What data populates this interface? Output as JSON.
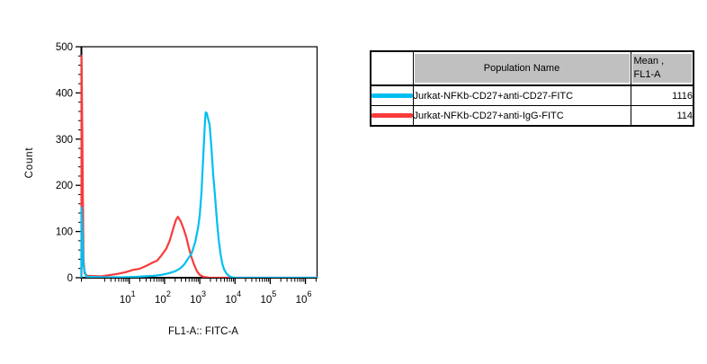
{
  "chart_data": {
    "type": "line",
    "subtype": "flow-cytometry-histogram-overlay",
    "title": "",
    "xlabel": "FL1-A:: FITC-A",
    "ylabel": "Count",
    "x_scale": "biexponential-log10",
    "x_tick_base": "10",
    "x_major_tick_exponents": [
      1,
      2,
      3,
      4,
      5,
      6
    ],
    "xlim_log10": [
      -0.36,
      6.33
    ],
    "ylim": [
      0,
      500
    ],
    "y_major_ticks": [
      0,
      100,
      200,
      300,
      400,
      500
    ],
    "y_minor_step": 20,
    "grid": false,
    "legend_position": "table-right",
    "series": [
      {
        "name": "Jurkat-NFKb-CD27+anti-CD27-FITC",
        "color": "#00BFF0",
        "mean_fl1a": 1116,
        "peak": {
          "log10x": 3.17,
          "count": 358
        },
        "points_log10x_count": [
          [
            -0.36,
            0
          ],
          [
            -0.355,
            152
          ],
          [
            -0.3,
            25
          ],
          [
            -0.27,
            15
          ],
          [
            -0.22,
            2
          ],
          [
            0.3,
            1
          ],
          [
            0.8,
            1
          ],
          [
            1.2,
            2
          ],
          [
            1.41,
            3
          ],
          [
            1.7,
            4
          ],
          [
            1.9,
            6
          ],
          [
            2.13,
            10
          ],
          [
            2.3,
            14
          ],
          [
            2.44,
            20
          ],
          [
            2.55,
            28
          ],
          [
            2.64,
            38
          ],
          [
            2.77,
            53
          ],
          [
            2.87,
            77
          ],
          [
            2.95,
            107
          ],
          [
            3.0,
            136
          ],
          [
            3.05,
            185
          ],
          [
            3.1,
            264
          ],
          [
            3.15,
            342
          ],
          [
            3.17,
            358
          ],
          [
            3.2,
            356
          ],
          [
            3.28,
            330
          ],
          [
            3.33,
            283
          ],
          [
            3.38,
            224
          ],
          [
            3.44,
            171
          ],
          [
            3.49,
            120
          ],
          [
            3.54,
            81
          ],
          [
            3.59,
            51
          ],
          [
            3.64,
            30
          ],
          [
            3.69,
            18
          ],
          [
            3.77,
            8
          ],
          [
            3.85,
            3
          ],
          [
            3.97,
            0
          ],
          [
            6.33,
            0
          ]
        ]
      },
      {
        "name": "Jurkat-NFKb-CD27+anti-IgG-FITC",
        "color": "#F93B3B",
        "mean_fl1a": 114,
        "peak": {
          "log10x": 2.38,
          "count": 132
        },
        "points_log10x_count": [
          [
            -0.36,
            0
          ],
          [
            -0.355,
            480
          ],
          [
            -0.3,
            40
          ],
          [
            -0.27,
            10
          ],
          [
            -0.2,
            4
          ],
          [
            0.2,
            3
          ],
          [
            0.64,
            8
          ],
          [
            0.9,
            12
          ],
          [
            1.1,
            17
          ],
          [
            1.28,
            19
          ],
          [
            1.49,
            26
          ],
          [
            1.67,
            33
          ],
          [
            1.79,
            37
          ],
          [
            1.92,
            49
          ],
          [
            2.05,
            63
          ],
          [
            2.15,
            81
          ],
          [
            2.26,
            110
          ],
          [
            2.33,
            126
          ],
          [
            2.38,
            132
          ],
          [
            2.46,
            122
          ],
          [
            2.54,
            106
          ],
          [
            2.62,
            87
          ],
          [
            2.69,
            65
          ],
          [
            2.77,
            43
          ],
          [
            2.85,
            26
          ],
          [
            2.92,
            14
          ],
          [
            3.0,
            6
          ],
          [
            3.1,
            2
          ],
          [
            3.26,
            0
          ],
          [
            6.33,
            0
          ]
        ]
      }
    ]
  },
  "table": {
    "headers": {
      "swatch": "",
      "population": "Population Name",
      "mean_line1": "Mean ,",
      "mean_line2": "FL1-A"
    },
    "rows": [
      {
        "name": "Jurkat-NFKb-CD27+anti-CD27-FITC",
        "mean": "1116",
        "color": "#00BFF0"
      },
      {
        "name": "Jurkat-NFKb-CD27+anti-IgG-FITC",
        "mean": "114",
        "color": "#F93B3B"
      }
    ]
  }
}
